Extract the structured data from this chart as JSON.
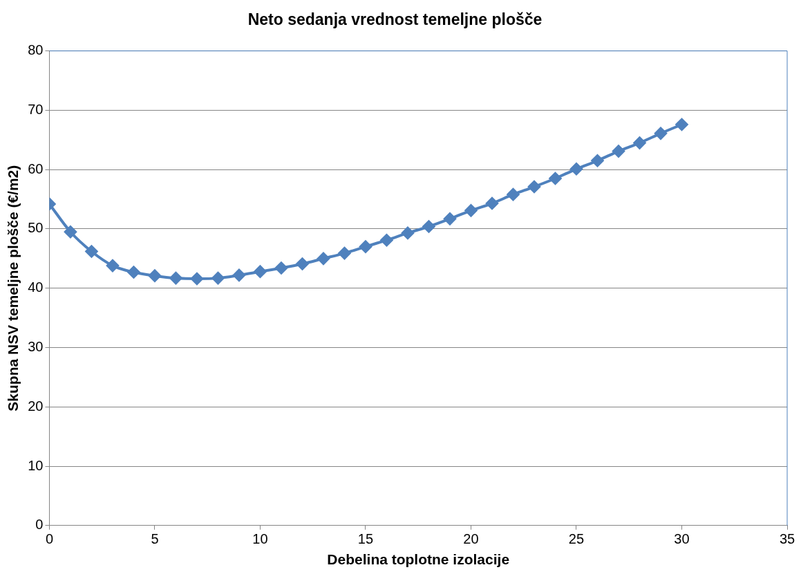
{
  "chart_data": {
    "type": "line",
    "title": "Neto sedanja vrednost temeljne plošče",
    "xlabel": "Debelina toplotne izolacije",
    "ylabel": "Skupna NSV temeljne plošče (€/m2)",
    "x": [
      0,
      1,
      2,
      3,
      4,
      5,
      6,
      7,
      8,
      9,
      10,
      11,
      12,
      13,
      14,
      15,
      16,
      17,
      18,
      19,
      20,
      21,
      22,
      23,
      24,
      25,
      26,
      27,
      28,
      29,
      30
    ],
    "series": [
      {
        "color": "#4f81bd",
        "values": [
          54.2,
          49.5,
          46.2,
          43.8,
          42.7,
          42.1,
          41.7,
          41.6,
          41.7,
          42.2,
          42.8,
          43.4,
          44.1,
          45.0,
          45.9,
          47.0,
          48.1,
          49.3,
          50.4,
          51.7,
          53.1,
          54.3,
          55.8,
          57.1,
          58.5,
          60.1,
          61.5,
          63.1,
          64.5,
          66.1,
          67.6
        ]
      }
    ],
    "xlim": [
      0,
      35
    ],
    "xticks": [
      0,
      5,
      10,
      15,
      20,
      25,
      30,
      35
    ],
    "ylim": [
      0,
      80
    ],
    "yticks": [
      0,
      10,
      20,
      30,
      40,
      50,
      60,
      70,
      80
    ],
    "grid": "y",
    "legend": false,
    "marker": "diamond",
    "line_style": "solid"
  }
}
